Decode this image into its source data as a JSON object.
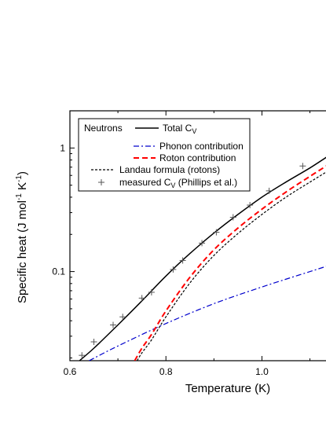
{
  "chart_data": {
    "type": "line",
    "xlabel": "Temperature (K)",
    "ylabel_main": "Specific heat  (J mol",
    "ylabel_sup1": "-1",
    "ylabel_mid": " K",
    "ylabel_sup2": "-1",
    "ylabel_end": ")",
    "xlim": [
      0.6,
      1.14
    ],
    "ylim": [
      0.019,
      2.0
    ],
    "yscale": "log",
    "x_ticks": [
      0.6,
      0.8,
      1.0
    ],
    "x_tick_labels": [
      "0.6",
      "0.8",
      "1.0"
    ],
    "y_ticks": [
      0.1,
      1
    ],
    "y_tick_labels": [
      "0.1",
      "1"
    ],
    "legend": {
      "group_label": "Neutrons",
      "entries": [
        {
          "label_main": "Total C",
          "label_sub": "V",
          "label_rest": "",
          "style": "solid",
          "color": "#000000"
        },
        {
          "label_main": "Phonon contribution",
          "label_sub": "",
          "label_rest": "",
          "style": "dashdot",
          "color": "#0000cc"
        },
        {
          "label_main": "Roton contribution",
          "label_sub": "",
          "label_rest": "",
          "style": "dashed",
          "color": "#ff0000"
        },
        {
          "label_main": "Landau formula (rotons)",
          "label_sub": "",
          "label_rest": "",
          "style": "dotted",
          "color": "#000000"
        },
        {
          "label_main": "measured C",
          "label_sub": "V",
          "label_rest": " (Phillips et al.)",
          "style": "marker-plus",
          "color": "#555555"
        }
      ]
    },
    "series": [
      {
        "name": "Total C_V",
        "style": "solid",
        "color": "#000000",
        "x": [
          0.62,
          0.65,
          0.7,
          0.75,
          0.8,
          0.85,
          0.9,
          0.95,
          1.0,
          1.05,
          1.1,
          1.14
        ],
        "y": [
          0.019,
          0.024,
          0.037,
          0.058,
          0.092,
          0.14,
          0.205,
          0.29,
          0.4,
          0.53,
          0.69,
          0.87
        ]
      },
      {
        "name": "Phonon contribution",
        "style": "dashdot",
        "color": "#0000cc",
        "x": [
          0.64,
          0.7,
          0.8,
          0.9,
          1.0,
          1.1,
          1.14
        ],
        "y": [
          0.019,
          0.025,
          0.038,
          0.055,
          0.075,
          0.1,
          0.112
        ]
      },
      {
        "name": "Roton contribution",
        "style": "dashed",
        "color": "#ff0000",
        "x": [
          0.735,
          0.75,
          0.77,
          0.8,
          0.85,
          0.9,
          0.95,
          1.0,
          1.05,
          1.1,
          1.14
        ],
        "y": [
          0.019,
          0.024,
          0.031,
          0.048,
          0.09,
          0.15,
          0.225,
          0.32,
          0.44,
          0.59,
          0.74
        ]
      },
      {
        "name": "Landau formula (rotons)",
        "style": "dotted",
        "color": "#000000",
        "x": [
          0.74,
          0.75,
          0.77,
          0.8,
          0.85,
          0.9,
          0.95,
          1.0,
          1.05,
          1.1,
          1.14
        ],
        "y": [
          0.019,
          0.022,
          0.028,
          0.043,
          0.081,
          0.135,
          0.203,
          0.29,
          0.4,
          0.53,
          0.66
        ]
      },
      {
        "name": "measured C_V (Phillips et al.)",
        "style": "marker-plus",
        "color": "#555555",
        "x": [
          0.625,
          0.65,
          0.69,
          0.71,
          0.75,
          0.77,
          0.815,
          0.835,
          0.875,
          0.905,
          0.94,
          0.975,
          1.015,
          1.085
        ],
        "y": [
          0.021,
          0.027,
          0.037,
          0.043,
          0.061,
          0.068,
          0.104,
          0.123,
          0.17,
          0.208,
          0.275,
          0.345,
          0.45,
          0.715
        ]
      }
    ]
  }
}
